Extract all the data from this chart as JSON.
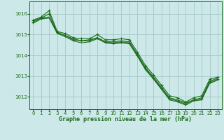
{
  "title": "Graphe pression niveau de la mer (hPa)",
  "background_color": "#cce8e8",
  "grid_color": "#aacccc",
  "line_color": "#1a6b1a",
  "xlim": [
    -0.5,
    23.5
  ],
  "ylim": [
    1011.4,
    1016.6
  ],
  "yticks": [
    1012,
    1013,
    1014,
    1015,
    1016
  ],
  "xticks": [
    0,
    1,
    2,
    3,
    4,
    5,
    6,
    7,
    8,
    9,
    10,
    11,
    12,
    13,
    14,
    15,
    16,
    17,
    18,
    19,
    20,
    21,
    22,
    23
  ],
  "series": [
    {
      "x": [
        0,
        1,
        2,
        3,
        4,
        5,
        6,
        7,
        8,
        9,
        10,
        11,
        12,
        13,
        14,
        15,
        16,
        17,
        18,
        19,
        20,
        21,
        22,
        23
      ],
      "y": [
        1015.7,
        1015.85,
        1016.15,
        1015.15,
        1015.05,
        1014.85,
        1014.8,
        1014.8,
        1015.0,
        1014.75,
        1014.75,
        1014.8,
        1014.75,
        1014.15,
        1013.5,
        1013.05,
        1012.55,
        1012.05,
        1011.95,
        1011.75,
        1011.95,
        1012.05,
        1012.85,
        1012.95
      ],
      "has_marker": true
    },
    {
      "x": [
        0,
        1,
        2,
        3,
        4,
        5,
        6,
        7,
        8,
        9,
        10,
        11,
        12,
        13,
        14,
        15,
        16,
        17,
        18,
        19,
        20,
        21,
        22,
        23
      ],
      "y": [
        1015.65,
        1015.8,
        1015.85,
        1015.1,
        1014.95,
        1014.8,
        1014.7,
        1014.75,
        1014.85,
        1014.65,
        1014.65,
        1014.7,
        1014.65,
        1014.05,
        1013.4,
        1012.95,
        1012.45,
        1011.95,
        1011.85,
        1011.7,
        1011.85,
        1011.95,
        1012.75,
        1012.9
      ],
      "has_marker": false
    },
    {
      "x": [
        0,
        1,
        2,
        3,
        4,
        5,
        6,
        7,
        8,
        9,
        10,
        11,
        12,
        13,
        14,
        15,
        16,
        17,
        18,
        19,
        20,
        21,
        22,
        23
      ],
      "y": [
        1015.6,
        1015.8,
        1016.0,
        1015.1,
        1014.95,
        1014.75,
        1014.7,
        1014.7,
        1014.85,
        1014.65,
        1014.6,
        1014.65,
        1014.6,
        1014.0,
        1013.35,
        1012.9,
        1012.4,
        1011.9,
        1011.8,
        1011.65,
        1011.85,
        1011.9,
        1012.7,
        1012.85
      ],
      "has_marker": true
    },
    {
      "x": [
        0,
        1,
        2,
        3,
        4,
        5,
        6,
        7,
        8,
        9,
        10,
        11,
        12,
        13,
        14,
        15,
        16,
        17,
        18,
        19,
        20,
        21,
        22,
        23
      ],
      "y": [
        1015.55,
        1015.75,
        1015.8,
        1015.05,
        1014.9,
        1014.7,
        1014.6,
        1014.65,
        1014.8,
        1014.6,
        1014.55,
        1014.6,
        1014.55,
        1013.95,
        1013.3,
        1012.85,
        1012.35,
        1011.85,
        1011.75,
        1011.6,
        1011.8,
        1011.85,
        1012.65,
        1012.8
      ],
      "has_marker": false
    }
  ]
}
